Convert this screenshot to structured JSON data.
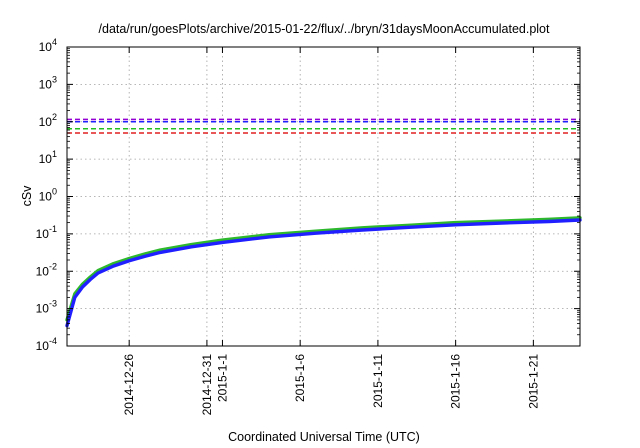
{
  "chart_data": {
    "type": "line",
    "title": "/data/run/goesPlots/archive/2015-01-22/flux/../bryn/31daysMoonAccumulated.plot",
    "xlabel": "Coordinated Universal Time (UTC)",
    "ylabel": "cSv",
    "y_scale": "log",
    "ylim": [
      0.0001,
      10000
    ],
    "xlim": [
      "2014-12-22",
      "2015-01-24"
    ],
    "grid": true,
    "y_ticks": [
      {
        "value": 0.0001,
        "base": "10",
        "exp": "-4"
      },
      {
        "value": 0.001,
        "base": "10",
        "exp": "-3"
      },
      {
        "value": 0.01,
        "base": "10",
        "exp": "-2"
      },
      {
        "value": 0.1,
        "base": "10",
        "exp": "-1"
      },
      {
        "value": 1,
        "base": "10",
        "exp": "0"
      },
      {
        "value": 10,
        "base": "10",
        "exp": "1"
      },
      {
        "value": 100,
        "base": "10",
        "exp": "2"
      },
      {
        "value": 1000,
        "base": "10",
        "exp": "3"
      },
      {
        "value": 10000,
        "base": "10",
        "exp": "4"
      }
    ],
    "x_ticks": [
      {
        "date": "2014-12-26",
        "label": "2014-12-26"
      },
      {
        "date": "2014-12-31",
        "label": "2014-12-31"
      },
      {
        "date": "2015-01-01",
        "label": "2015-1-1"
      },
      {
        "date": "2015-01-06",
        "label": "2015-1-6"
      },
      {
        "date": "2015-01-11",
        "label": "2015-1-11"
      },
      {
        "date": "2015-01-16",
        "label": "2015-1-16"
      },
      {
        "date": "2015-01-21",
        "label": "2015-1-21"
      }
    ],
    "reference_lines": [
      {
        "value": 115,
        "color": "#9400d3"
      },
      {
        "value": 100,
        "color": "#2020ff"
      },
      {
        "value": 65,
        "color": "#20c020"
      },
      {
        "value": 50,
        "color": "#e02020"
      }
    ],
    "series": [
      {
        "color": "#2db82d",
        "x": [
          "2014-12-22",
          "2014-12-22T12:00",
          "2014-12-23",
          "2014-12-23T12:00",
          "2014-12-24",
          "2014-12-25",
          "2014-12-26",
          "2014-12-27",
          "2014-12-28",
          "2014-12-30",
          "2015-01-01",
          "2015-01-04",
          "2015-01-07",
          "2015-01-10",
          "2015-01-13",
          "2015-01-16",
          "2015-01-19",
          "2015-01-22",
          "2015-01-24"
        ],
        "values": [
          0.0005,
          0.0025,
          0.0045,
          0.007,
          0.0105,
          0.016,
          0.022,
          0.029,
          0.037,
          0.052,
          0.068,
          0.095,
          0.118,
          0.145,
          0.17,
          0.2,
          0.22,
          0.245,
          0.27
        ]
      },
      {
        "color": "#1f1fff",
        "x": [
          "2014-12-22",
          "2014-12-22T12:00",
          "2014-12-23",
          "2014-12-23T12:00",
          "2014-12-24",
          "2014-12-25",
          "2014-12-26",
          "2014-12-27",
          "2014-12-28",
          "2014-12-30",
          "2015-01-01",
          "2015-01-04",
          "2015-01-07",
          "2015-01-10",
          "2015-01-13",
          "2015-01-16",
          "2015-01-19",
          "2015-01-22",
          "2015-01-24"
        ],
        "values": [
          0.00035,
          0.002,
          0.0038,
          0.006,
          0.009,
          0.0138,
          0.019,
          0.025,
          0.032,
          0.045,
          0.059,
          0.083,
          0.104,
          0.127,
          0.15,
          0.175,
          0.195,
          0.215,
          0.235
        ]
      }
    ]
  }
}
